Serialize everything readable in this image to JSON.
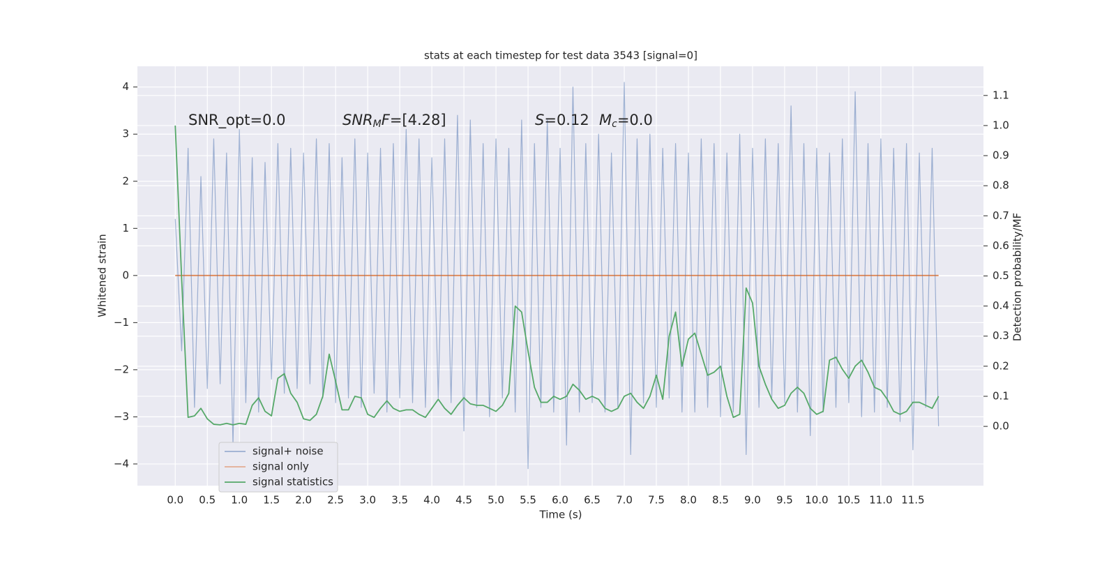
{
  "chart_data": {
    "type": "line",
    "title": "stats at each timestep for test data 3543 [signal=0]",
    "xlabel": "Time (s)",
    "ylabel": "Whitened strain",
    "y2label": "Detection probability/MF",
    "annotations": [
      [
        "SNR_opt=0.0"
      ],
      [
        "SNR",
        "M",
        "F",
        "=[4.28]"
      ],
      [
        "S",
        "=0.12"
      ],
      [
        "M",
        "c",
        "=0.0"
      ]
    ],
    "grid": true,
    "legend_loc": "lower left",
    "xlim": [
      -0.59,
      12.6
    ],
    "ylim": [
      -4.46,
      4.44
    ],
    "y2lim": [
      -0.197,
      1.197
    ],
    "xticks": [
      {
        "value": 0,
        "label": "0.0"
      },
      0.5,
      {
        "value": 1,
        "label": "1.0"
      },
      1.5,
      {
        "value": 2,
        "label": "2.0"
      },
      2.5,
      {
        "value": 3,
        "label": "3.0"
      },
      3.5,
      {
        "value": 4,
        "label": "4.0"
      },
      4.5,
      {
        "value": 5,
        "label": "5.0"
      },
      5.5,
      {
        "value": 6,
        "label": "6.0"
      },
      6.5,
      {
        "value": 7,
        "label": "7.0"
      },
      7.5,
      {
        "value": 8,
        "label": "8.0"
      },
      8.5,
      {
        "value": 9,
        "label": "9.0"
      },
      9.5,
      {
        "value": 10,
        "label": "10.0"
      },
      10.5,
      {
        "value": 11,
        "label": "11.0"
      },
      11.5
    ],
    "yticks": [
      {
        "value": -4,
        "label": "−4"
      },
      {
        "value": -3,
        "label": "−3"
      },
      {
        "value": -2,
        "label": "−2"
      },
      {
        "value": -1,
        "label": "−1"
      },
      0,
      1,
      2,
      3,
      4
    ],
    "y2ticks": [
      {
        "value": 0,
        "label": "0.0"
      },
      0.1,
      0.2,
      0.3,
      0.4,
      0.5,
      0.6,
      0.7,
      0.8,
      0.9,
      {
        "value": 1,
        "label": "1.0"
      },
      1.1
    ],
    "x": [
      0,
      0.1,
      0.2,
      0.3,
      0.4,
      0.5,
      0.6,
      0.7,
      0.8,
      0.9,
      1,
      1.1,
      1.2,
      1.3,
      1.4,
      1.5,
      1.6,
      1.7,
      1.8,
      1.9,
      2,
      2.1,
      2.2,
      2.3,
      2.4,
      2.5,
      2.6,
      2.7,
      2.8,
      2.9,
      3,
      3.1,
      3.2,
      3.3,
      3.4,
      3.5,
      3.6,
      3.7,
      3.8,
      3.9,
      4,
      4.1,
      4.2,
      4.3,
      4.4,
      4.5,
      4.6,
      4.7,
      4.8,
      4.9,
      5,
      5.1,
      5.2,
      5.3,
      5.4,
      5.5,
      5.6,
      5.7,
      5.8,
      5.9,
      6,
      6.1,
      6.2,
      6.3,
      6.4,
      6.5,
      6.6,
      6.7,
      6.8,
      6.9,
      7,
      7.1,
      7.2,
      7.3,
      7.4,
      7.5,
      7.6,
      7.7,
      7.8,
      7.9,
      8,
      8.1,
      8.2,
      8.3,
      8.4,
      8.5,
      8.6,
      8.7,
      8.8,
      8.9,
      9,
      9.1,
      9.2,
      9.3,
      9.4,
      9.5,
      9.6,
      9.7,
      9.8,
      9.9,
      10,
      10.1,
      10.2,
      10.3,
      10.4,
      10.5,
      10.6,
      10.7,
      10.8,
      10.9,
      11,
      11.1,
      11.2,
      11.3,
      11.4,
      11.5,
      11.6,
      11.7,
      11.8,
      11.9
    ],
    "series": [
      {
        "name": "signal+ noise",
        "color": "#4c72b0",
        "alpha": 0.5,
        "values": [
          1.2,
          -1.6,
          2.7,
          -2.8,
          2.1,
          -2.4,
          2.9,
          -2.3,
          2.6,
          -3.6,
          3.1,
          -2.7,
          2.5,
          -2.9,
          2.4,
          -2.2,
          2.8,
          -2.5,
          2.7,
          -2.4,
          2.6,
          -2.3,
          2.9,
          -2.6,
          2.8,
          -2.7,
          2.5,
          -2.6,
          2.9,
          -2.8,
          2.6,
          -2.5,
          2.7,
          -2.9,
          2.8,
          -2.6,
          3.1,
          -2.7,
          2.9,
          -2.8,
          2.5,
          -2.6,
          2.9,
          -2.7,
          3.4,
          -3.3,
          3.3,
          -2.8,
          2.8,
          -3.0,
          2.9,
          -2.6,
          2.7,
          -2.9,
          3.3,
          -4.1,
          2.8,
          -2.8,
          3.3,
          -2.9,
          2.7,
          -3.6,
          4.0,
          -2.9,
          2.8,
          -2.7,
          3.0,
          -2.9,
          2.6,
          -2.8,
          4.1,
          -3.8,
          2.9,
          -2.7,
          3.0,
          -2.8,
          2.7,
          -2.6,
          2.8,
          -2.9,
          2.6,
          -2.9,
          2.9,
          -2.8,
          2.8,
          -3.0,
          2.6,
          -2.9,
          3.0,
          -3.8,
          2.7,
          -2.8,
          2.9,
          -2.6,
          2.8,
          -2.7,
          3.6,
          -2.9,
          2.8,
          -3.4,
          2.7,
          -2.9,
          2.6,
          -2.8,
          2.9,
          -2.7,
          3.9,
          -3.0,
          2.8,
          -2.9,
          2.9,
          -2.8,
          2.7,
          -3.1,
          2.8,
          -3.7,
          2.6,
          -2.8,
          2.7,
          -3.2
        ]
      },
      {
        "name": "signal only",
        "color": "#dd8452",
        "values": [
          0,
          0,
          0,
          0,
          0,
          0,
          0,
          0,
          0,
          0,
          0,
          0,
          0,
          0,
          0,
          0,
          0,
          0,
          0,
          0,
          0,
          0,
          0,
          0,
          0,
          0,
          0,
          0,
          0,
          0,
          0,
          0,
          0,
          0,
          0,
          0,
          0,
          0,
          0,
          0,
          0,
          0,
          0,
          0,
          0,
          0,
          0,
          0,
          0,
          0,
          0,
          0,
          0,
          0,
          0,
          0,
          0,
          0,
          0,
          0,
          0,
          0,
          0,
          0,
          0,
          0,
          0,
          0,
          0,
          0,
          0,
          0,
          0,
          0,
          0,
          0,
          0,
          0,
          0,
          0,
          0,
          0,
          0,
          0,
          0,
          0,
          0,
          0,
          0,
          0,
          0,
          0,
          0,
          0,
          0,
          0,
          0,
          0,
          0,
          0,
          0,
          0,
          0,
          0,
          0,
          0,
          0,
          0,
          0,
          0,
          0,
          0,
          0,
          0,
          0,
          0,
          0,
          0,
          0,
          0
        ]
      },
      {
        "name": "signal statistics",
        "color": "#55a868",
        "axis": "y2",
        "values": [
          1.0,
          0.49,
          0.03,
          0.035,
          0.06,
          0.025,
          0.007,
          0.005,
          0.01,
          0.005,
          0.01,
          0.007,
          0.07,
          0.095,
          0.05,
          0.035,
          0.16,
          0.175,
          0.11,
          0.08,
          0.025,
          0.02,
          0.04,
          0.1,
          0.24,
          0.15,
          0.055,
          0.055,
          0.1,
          0.095,
          0.04,
          0.03,
          0.06,
          0.085,
          0.06,
          0.05,
          0.055,
          0.055,
          0.04,
          0.03,
          0.06,
          0.09,
          0.06,
          0.04,
          0.07,
          0.095,
          0.075,
          0.07,
          0.07,
          0.06,
          0.05,
          0.07,
          0.11,
          0.4,
          0.38,
          0.25,
          0.13,
          0.08,
          0.08,
          0.1,
          0.09,
          0.1,
          0.14,
          0.12,
          0.09,
          0.1,
          0.09,
          0.06,
          0.05,
          0.06,
          0.1,
          0.11,
          0.08,
          0.06,
          0.1,
          0.17,
          0.09,
          0.3,
          0.38,
          0.2,
          0.29,
          0.31,
          0.24,
          0.17,
          0.18,
          0.2,
          0.1,
          0.03,
          0.04,
          0.46,
          0.41,
          0.2,
          0.14,
          0.09,
          0.06,
          0.07,
          0.11,
          0.13,
          0.11,
          0.06,
          0.04,
          0.05,
          0.22,
          0.23,
          0.19,
          0.16,
          0.2,
          0.22,
          0.18,
          0.13,
          0.12,
          0.09,
          0.05,
          0.04,
          0.05,
          0.08,
          0.08,
          0.07,
          0.06,
          0.1
        ]
      }
    ]
  }
}
